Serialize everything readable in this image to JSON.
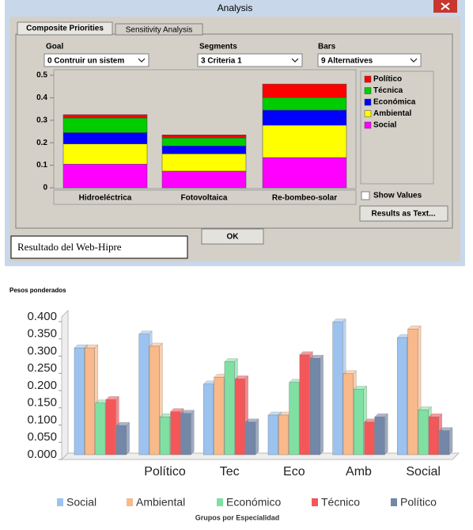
{
  "window": {
    "title": "Analysis",
    "tabs": [
      "Composite Priorities",
      "Sensitivity Analysis"
    ],
    "controls": {
      "goal_label": "Goal",
      "goal_value": "0 Contruir un sistem",
      "segments_label": "Segments",
      "segments_value": "3 Criteria 1",
      "bars_label": "Bars",
      "bars_value": "9 Alternatives",
      "show_values": "Show Values",
      "results_button": "Results as Text...",
      "ok_button": "OK"
    },
    "caption": "Resultado del Web-Hipre"
  },
  "chart_data": [
    {
      "type": "stacked_bar",
      "categories": [
        "Hidroeléctrica",
        "Fotovoltaica",
        "Re-bombeo-solar"
      ],
      "series": [
        {
          "name": "Social",
          "color": "#ff00ff",
          "values": [
            0.105,
            0.074,
            0.134
          ]
        },
        {
          "name": "Ambiental",
          "color": "#ffff00",
          "values": [
            0.09,
            0.077,
            0.144
          ]
        },
        {
          "name": "Económica",
          "color": "#0000ff",
          "values": [
            0.05,
            0.035,
            0.067
          ]
        },
        {
          "name": "Técnica",
          "color": "#00cc00",
          "values": [
            0.065,
            0.035,
            0.056
          ]
        },
        {
          "name": "Político",
          "color": "#ff0000",
          "values": [
            0.015,
            0.014,
            0.06
          ]
        }
      ],
      "ylim": [
        0,
        0.5
      ],
      "yticks": [
        0,
        0.1,
        0.2,
        0.3,
        0.4,
        0.5
      ],
      "legend": "right"
    },
    {
      "type": "bar",
      "ylabel": "Pesos ponderados",
      "xlabel": "Grupos por Especialidad",
      "categories": [
        null,
        "Político",
        "Tec",
        "Eco",
        "Amb",
        "Social"
      ],
      "series": [
        {
          "name": "Social",
          "color": "#9cc3f0",
          "values": [
            0.31,
            0.35,
            0.205,
            0.115,
            0.385,
            0.34
          ]
        },
        {
          "name": "Ambiental",
          "color": "#f9b98a",
          "values": [
            0.31,
            0.315,
            0.225,
            0.115,
            0.235,
            0.365
          ]
        },
        {
          "name": "Económico",
          "color": "#7fe0a2",
          "values": [
            0.15,
            0.11,
            0.27,
            0.21,
            0.19,
            0.13
          ]
        },
        {
          "name": "Técnico",
          "color": "#f4575a",
          "values": [
            0.16,
            0.125,
            0.22,
            0.29,
            0.095,
            0.11
          ]
        },
        {
          "name": "Político",
          "color": "#7387a8",
          "values": [
            0.085,
            0.12,
            0.095,
            0.28,
            0.11,
            0.07
          ]
        }
      ],
      "ylim": [
        0,
        0.4
      ],
      "yticks": [
        {
          "value": 0,
          "label": "0.000"
        },
        {
          "value": 0.05,
          "label": "0.050"
        },
        {
          "value": 0.1,
          "label": "0.100"
        },
        {
          "value": 0.15,
          "label": "0.150"
        },
        {
          "value": 0.2,
          "label": "0.200"
        },
        {
          "value": 0.25,
          "label": "0.250"
        },
        {
          "value": 0.3,
          "label": "0.300"
        },
        {
          "value": 0.35,
          "label": "0.350"
        },
        {
          "value": 0.4,
          "label": "0.400"
        }
      ],
      "legend": "bottom"
    }
  ]
}
